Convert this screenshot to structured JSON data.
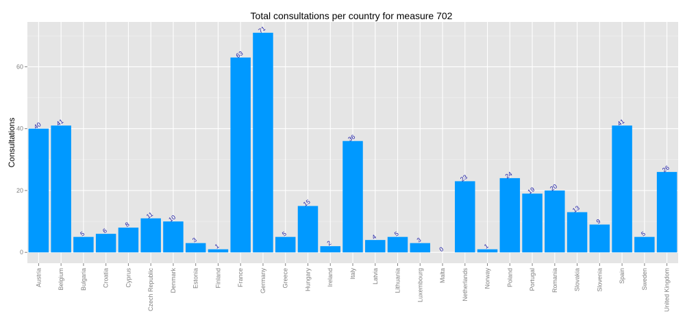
{
  "chart_data": {
    "type": "bar",
    "title": "Total consultations per country for measure 702",
    "xlabel": "",
    "ylabel": "Consultations",
    "categories": [
      "Austria",
      "Belgium",
      "Bulgaria",
      "Croatia",
      "Cyprus",
      "Czech Republic",
      "Denmark",
      "Estonia",
      "Finland",
      "France",
      "Germany",
      "Greece",
      "Hungary",
      "Ireland",
      "Italy",
      "Latvia",
      "Lithuania",
      "Luxembourg",
      "Malta",
      "Netherlands",
      "Norway",
      "Poland",
      "Portugal",
      "Romania",
      "Slovakia",
      "Slovenia",
      "Spain",
      "Sweden",
      "United Kingdom"
    ],
    "values": [
      40,
      41,
      5,
      6,
      8,
      11,
      10,
      3,
      1,
      63,
      71,
      5,
      15,
      2,
      36,
      4,
      5,
      3,
      0,
      23,
      1,
      24,
      19,
      20,
      13,
      9,
      41,
      5,
      26
    ],
    "data_labels": [
      "40",
      "41",
      "5",
      "6",
      "8",
      "11",
      "10",
      "3",
      "1",
      "63",
      "71",
      "5",
      "15",
      "2",
      "36",
      "4",
      "5",
      "3",
      "0",
      "23",
      "1",
      "24",
      "19",
      "20",
      "13",
      "9",
      "41",
      "5",
      "26"
    ],
    "yticks": [
      0,
      20,
      40,
      60
    ],
    "ytick_labels": [
      "0",
      "20",
      "40",
      "60"
    ],
    "ylim": [
      -3.5,
      74.5
    ],
    "grid": true,
    "legend": "none",
    "colors": {
      "bar": "#0099ff",
      "panel": "#e5e5e5",
      "grid_major": "#ffffff",
      "grid_minor": "#f2f2f2",
      "data_label": "#1a1aa6",
      "tick_label": "#7f7f7f"
    }
  }
}
